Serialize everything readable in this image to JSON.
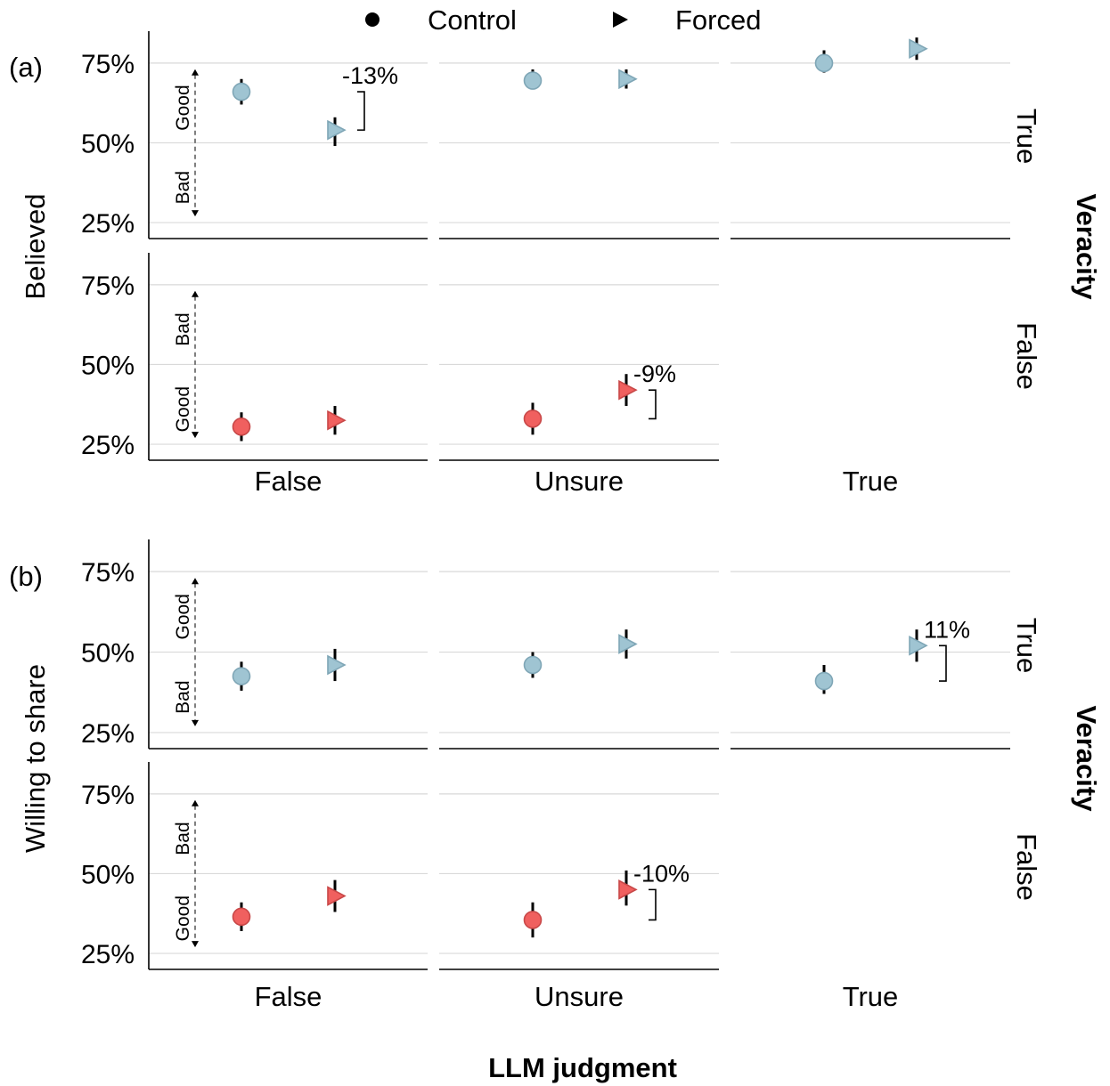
{
  "legend": {
    "items": [
      {
        "label": "Control",
        "marker": "circle"
      },
      {
        "label": "Forced",
        "marker": "triangle-right"
      }
    ],
    "position": "top-center"
  },
  "axis_labels": {
    "x": "LLM judgment",
    "facet_row": "Veracity"
  },
  "colors": {
    "true_veracity": "#9fc4d2",
    "true_veracity_edge": "#7fa6b6",
    "false_veracity": "#f0605f",
    "false_veracity_edge": "#c84848",
    "gridline": "#d9d9d9",
    "errorbar": "#000000"
  },
  "chart_data": [
    {
      "type": "scatter",
      "panel_label": "(a)",
      "ylabel": "Believed",
      "y_ticks": [
        "25%",
        "50%",
        "75%"
      ],
      "ylim": [
        20,
        85
      ],
      "categories": [
        "False",
        "Unsure",
        "True"
      ],
      "rows": [
        {
          "veracity": "True",
          "arrow_labels": {
            "top": "Good",
            "bottom": "Bad"
          },
          "facets": [
            {
              "llm": "False",
              "control": {
                "value": 66,
                "ci": [
                  62,
                  70
                ]
              },
              "forced": {
                "value": 54,
                "ci": [
                  49,
                  58
                ]
              },
              "diff_label": "-13%"
            },
            {
              "llm": "Unsure",
              "control": {
                "value": 69.5,
                "ci": [
                  67,
                  73
                ]
              },
              "forced": {
                "value": 70,
                "ci": [
                  67,
                  73
                ]
              },
              "diff_label": ""
            },
            {
              "llm": "True",
              "control": {
                "value": 75,
                "ci": [
                  72,
                  79
                ]
              },
              "forced": {
                "value": 79.5,
                "ci": [
                  76,
                  83
                ]
              },
              "diff_label": ""
            }
          ]
        },
        {
          "veracity": "False",
          "arrow_labels": {
            "top": "Bad",
            "bottom": "Good"
          },
          "facets": [
            {
              "llm": "False",
              "control": {
                "value": 30.5,
                "ci": [
                  26,
                  35
                ]
              },
              "forced": {
                "value": 32.5,
                "ci": [
                  28,
                  37
                ]
              },
              "diff_label": ""
            },
            {
              "llm": "Unsure",
              "control": {
                "value": 33,
                "ci": [
                  28,
                  38
                ]
              },
              "forced": {
                "value": 42,
                "ci": [
                  37,
                  47
                ]
              },
              "diff_label": "-9%"
            }
          ]
        }
      ]
    },
    {
      "type": "scatter",
      "panel_label": "(b)",
      "ylabel": "Willing to share",
      "y_ticks": [
        "25%",
        "50%",
        "75%"
      ],
      "ylim": [
        20,
        85
      ],
      "categories": [
        "False",
        "Unsure",
        "True"
      ],
      "rows": [
        {
          "veracity": "True",
          "arrow_labels": {
            "top": "Good",
            "bottom": "Bad"
          },
          "facets": [
            {
              "llm": "False",
              "control": {
                "value": 42.5,
                "ci": [
                  38,
                  47
                ]
              },
              "forced": {
                "value": 46,
                "ci": [
                  41,
                  51
                ]
              },
              "diff_label": ""
            },
            {
              "llm": "Unsure",
              "control": {
                "value": 46,
                "ci": [
                  42,
                  50
                ]
              },
              "forced": {
                "value": 52.5,
                "ci": [
                  48,
                  57
                ]
              },
              "diff_label": ""
            },
            {
              "llm": "True",
              "control": {
                "value": 41,
                "ci": [
                  37,
                  46
                ]
              },
              "forced": {
                "value": 52,
                "ci": [
                  47,
                  57
                ]
              },
              "diff_label": "11%"
            }
          ]
        },
        {
          "veracity": "False",
          "arrow_labels": {
            "top": "Bad",
            "bottom": "Good"
          },
          "facets": [
            {
              "llm": "False",
              "control": {
                "value": 36.5,
                "ci": [
                  32,
                  41
                ]
              },
              "forced": {
                "value": 43,
                "ci": [
                  38,
                  48
                ]
              },
              "diff_label": ""
            },
            {
              "llm": "Unsure",
              "control": {
                "value": 35.5,
                "ci": [
                  30,
                  41
                ]
              },
              "forced": {
                "value": 45,
                "ci": [
                  40,
                  51
                ]
              },
              "diff_label": "-10%"
            }
          ]
        }
      ]
    }
  ]
}
